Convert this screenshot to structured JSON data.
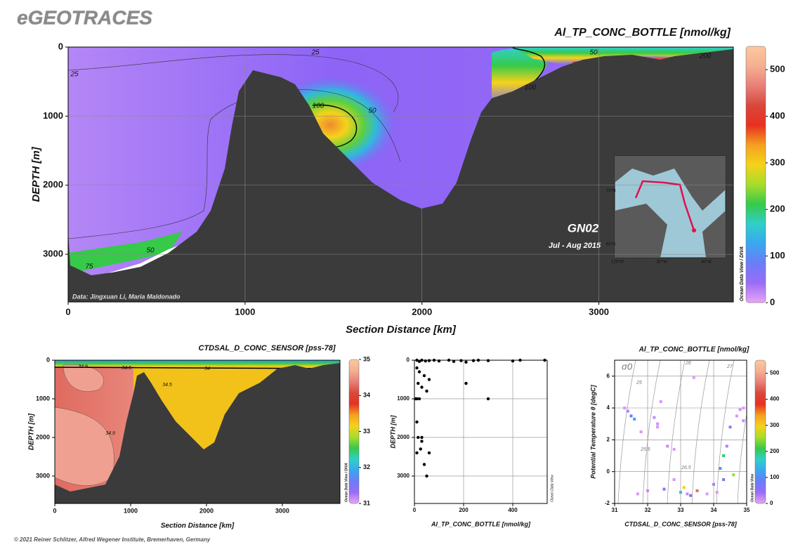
{
  "header": {
    "title": "eGEOTRACES",
    "footer": "© 2021 Reiner Schlitzer, Alfred Wegener Institute, Bremerhaven, Germany"
  },
  "chart_data": [
    {
      "type": "section",
      "title": "Al_TP_CONC_BOTTLE [nmol/kg]",
      "x_label": "Section Distance [km]",
      "y_label": "DEPTH [m]",
      "xlim": [
        0,
        3760
      ],
      "ylim": [
        3690,
        0
      ],
      "xticks": [
        0,
        1000,
        2000,
        3000
      ],
      "yticks": [
        0,
        1000,
        2000,
        3000
      ],
      "grid": true,
      "colorbar": {
        "lim": [
          0,
          550
        ],
        "ticks": [
          0,
          100,
          200,
          300,
          400,
          500
        ],
        "label": "Ocean Data View / DIVA"
      },
      "colormap": [
        "#e8a6f5",
        "#9b6cf7",
        "#6a7df8",
        "#3aa7f0",
        "#2fd0c8",
        "#37c94a",
        "#a8dd2a",
        "#f5d21a",
        "#f5a020",
        "#e83020",
        "#d8483c",
        "#e8807a",
        "#f4b090",
        "#fcc8a0"
      ],
      "contour_labels": [
        25,
        25,
        50,
        100,
        50,
        50,
        100,
        200,
        75
      ],
      "credit": "Data: Jingxuan Li, Maria Maldonado",
      "cruise": "GN02",
      "period": "Jul - Aug 2015",
      "map_labels": [
        "70°N",
        "60°N",
        "120°W",
        "80°W",
        "40°W"
      ]
    },
    {
      "type": "section",
      "title": "CTDSAL_D_CONC_SENSOR [pss-78]",
      "x_label": "Section Distance [km]",
      "y_label": "DEPTH [m]",
      "xlim": [
        0,
        3760
      ],
      "ylim": [
        3710,
        0
      ],
      "xticks": [
        0,
        1000,
        2000,
        3000
      ],
      "yticks": [
        0,
        1000,
        2000,
        3000
      ],
      "grid": false,
      "colorbar": {
        "lim": [
          31,
          35
        ],
        "ticks": [
          31,
          32,
          33,
          34,
          35
        ],
        "label": "Ocean Data View / DIVA"
      },
      "colormap": [
        "#e8a6f5",
        "#9b6cf7",
        "#6a7df8",
        "#3aa7f0",
        "#2fd0c8",
        "#37c94a",
        "#a8dd2a",
        "#f5d21a",
        "#f5a020",
        "#e83020",
        "#d8483c",
        "#e8807a",
        "#f4b090",
        "#fcc8a0"
      ],
      "contour_labels": [
        34.9,
        34.5,
        34,
        34.5,
        34.9
      ]
    },
    {
      "type": "scatter",
      "x_label": "Al_TP_CONC_BOTTLE [nmol/kg]",
      "y_label": "DEPTH [m]",
      "xlim": [
        0,
        540
      ],
      "ylim": [
        3710,
        0
      ],
      "xticks": [
        0,
        200,
        400
      ],
      "yticks": [
        0,
        1000,
        2000,
        3000
      ],
      "grid": true,
      "color": "#000000",
      "watermark": "Ocean Data View",
      "x": [
        10,
        20,
        30,
        45,
        60,
        80,
        100,
        140,
        160,
        190,
        210,
        240,
        260,
        300,
        400,
        430,
        530,
        10,
        20,
        40,
        60,
        15,
        30,
        50,
        5,
        10,
        20,
        210,
        300,
        10,
        15,
        25,
        30,
        10,
        40,
        50,
        60,
        30
      ],
      "values": [
        0,
        30,
        0,
        20,
        10,
        0,
        20,
        0,
        30,
        10,
        50,
        10,
        0,
        10,
        20,
        0,
        0,
        200,
        300,
        400,
        500,
        600,
        700,
        800,
        1000,
        1000,
        1000,
        600,
        1000,
        1600,
        2000,
        2300,
        2100,
        2400,
        2700,
        3000,
        2400,
        2000
      ]
    },
    {
      "type": "ts",
      "title": "Al_TP_CONC_BOTTLE [nmol/kg]",
      "x_label": "CTDSAL_D_CONC_SENSOR [pss-78]",
      "y_label": "Potential Temperature θ [degC]",
      "xlim": [
        31,
        35
      ],
      "ylim": [
        -2,
        7
      ],
      "xticks": [
        31,
        32,
        33,
        34,
        35
      ],
      "yticks": [
        -2,
        0,
        2,
        4,
        6
      ],
      "grid": true,
      "colorbar": {
        "lim": [
          0,
          550
        ],
        "ticks": [
          0,
          100,
          200,
          300,
          400,
          500
        ],
        "label": "Ocean Data View"
      },
      "colormap": [
        "#e8a6f5",
        "#9b6cf7",
        "#6a7df8",
        "#3aa7f0",
        "#2fd0c8",
        "#37c94a",
        "#a8dd2a",
        "#f5d21a",
        "#f5a020",
        "#e83020",
        "#d8483c",
        "#e8807a",
        "#f4b090",
        "#fcc8a0"
      ],
      "isopycnal_labels": [
        "σ0",
        "25",
        "26",
        "27",
        "25.5",
        "26.5"
      ],
      "x": [
        31.4,
        31.5,
        31.6,
        31.3,
        31.8,
        32.2,
        32.3,
        32.3,
        32.4,
        32.6,
        32.8,
        33.4,
        32.8,
        33.0,
        33.1,
        33.3,
        33.5,
        33.2,
        33.8,
        34.0,
        34.1,
        34.2,
        34.3,
        34.4,
        34.5,
        34.7,
        34.8,
        34.9,
        34.9,
        34.6,
        34.3,
        32.5,
        31.7,
        32.0
      ],
      "values": [
        3.8,
        3.5,
        3.3,
        4.0,
        2.5,
        3.4,
        3.0,
        2.8,
        4.4,
        1.6,
        1.4,
        5.9,
        -0.5,
        -1.3,
        -1.0,
        -1.5,
        -1.2,
        -1.4,
        -1.4,
        -0.8,
        -1.3,
        0.2,
        1.0,
        1.6,
        2.8,
        3.5,
        3.9,
        3.2,
        4.0,
        -0.2,
        -0.5,
        -1.1,
        -1.4,
        -1.2
      ],
      "color_values": [
        30,
        80,
        120,
        10,
        10,
        20,
        15,
        10,
        10,
        20,
        10,
        5,
        10,
        150,
        300,
        50,
        450,
        20,
        10,
        30,
        10,
        100,
        200,
        30,
        40,
        10,
        15,
        20,
        5,
        250,
        80,
        60,
        10,
        20
      ]
    }
  ]
}
